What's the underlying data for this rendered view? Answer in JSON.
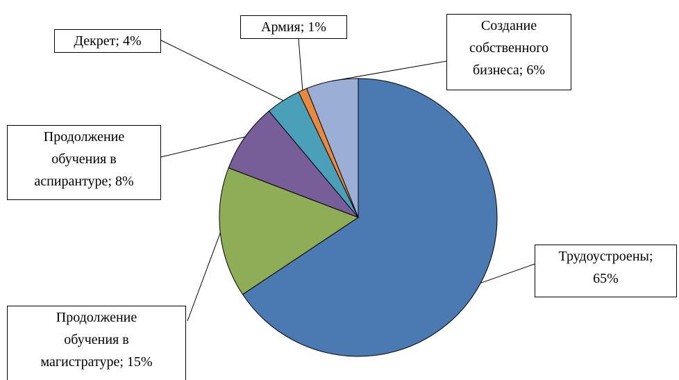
{
  "chart_data": {
    "type": "pie",
    "values": [
      65,
      15,
      8,
      4,
      1,
      6
    ],
    "value_labels": [
      "Трудоустроены; 65%",
      "Продолжение обучения в магистратуре; 15%",
      "Продолжение обучения в аспирантуре; 8%",
      "Декрет; 4%",
      "Армия; 1%",
      "Создание собственного бизнеса; 6%"
    ],
    "colors": [
      "#4a7ab1",
      "#8fac56",
      "#785e98",
      "#4aa0b8",
      "#e8893d",
      "#9aaed6"
    ]
  }
}
